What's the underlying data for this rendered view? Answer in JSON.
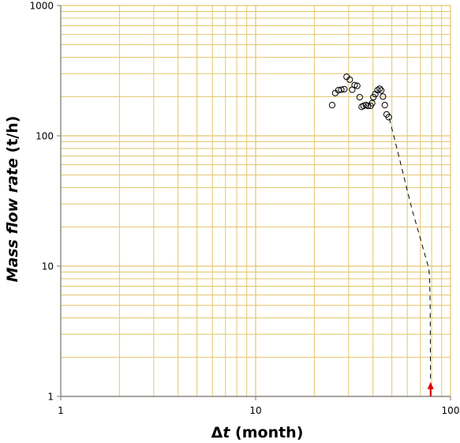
{
  "chart_data": {
    "type": "scatter",
    "title": "",
    "x_scale": "log",
    "y_scale": "log",
    "xlim": [
      1,
      100
    ],
    "ylim": [
      1,
      1000
    ],
    "grid": true,
    "legend": "none",
    "colors": {
      "grid": "#e3c56a",
      "axis": "#8c8c8c",
      "markers": "#000000",
      "fit_line": "#000000",
      "arrow": "#e00000"
    },
    "x_axis": {
      "label_prefix": "Δ",
      "label_var": "t",
      "label_suffix": " (month)",
      "ticks": [
        {
          "value": 1,
          "label": "1"
        },
        {
          "value": 10,
          "label": "10"
        },
        {
          "value": 100,
          "label": "100"
        }
      ]
    },
    "y_axis": {
      "label_italic": "Mass flow rate",
      "label_suffix": " (t/h)",
      "ticks": [
        {
          "value": 1,
          "label": "1"
        },
        {
          "value": 10,
          "label": "10"
        },
        {
          "value": 100,
          "label": "100"
        },
        {
          "value": 1000,
          "label": "1000"
        }
      ]
    },
    "series": [
      {
        "type": "scatter",
        "marker": "open-circle",
        "points": [
          [
            24.7,
            172
          ],
          [
            25.6,
            213
          ],
          [
            26.6,
            224
          ],
          [
            27.5,
            226
          ],
          [
            28.5,
            228
          ],
          [
            29.3,
            284
          ],
          [
            30.4,
            270
          ],
          [
            31.3,
            226
          ],
          [
            32.2,
            245
          ],
          [
            33.2,
            242
          ],
          [
            34.2,
            198
          ],
          [
            35.0,
            167
          ],
          [
            35.8,
            170
          ],
          [
            36.8,
            172
          ],
          [
            37.7,
            170
          ],
          [
            38.9,
            170
          ],
          [
            39.6,
            178
          ],
          [
            40.2,
            198
          ],
          [
            41.1,
            209
          ],
          [
            42.2,
            224
          ],
          [
            43.3,
            230
          ],
          [
            44.1,
            223
          ],
          [
            45.0,
            200
          ],
          [
            46.0,
            172
          ],
          [
            47.0,
            146
          ],
          [
            48.2,
            139
          ]
        ]
      },
      {
        "type": "line",
        "style": "dashed",
        "points": [
          [
            48.5,
            136
          ],
          [
            52,
            90
          ],
          [
            56,
            58
          ],
          [
            60,
            38
          ],
          [
            64,
            26
          ],
          [
            68,
            19
          ],
          [
            72,
            14
          ],
          [
            75,
            11.3
          ],
          [
            77.5,
            9.5
          ],
          [
            78.2,
            7.5
          ],
          [
            78.6,
            5
          ],
          [
            78.8,
            3
          ],
          [
            78.9,
            1.5
          ],
          [
            78.9,
            1.3
          ]
        ]
      }
    ],
    "annotations": [
      {
        "type": "arrow",
        "direction": "up",
        "x": 79,
        "y_from": 1,
        "y_to": 1.22
      }
    ]
  }
}
